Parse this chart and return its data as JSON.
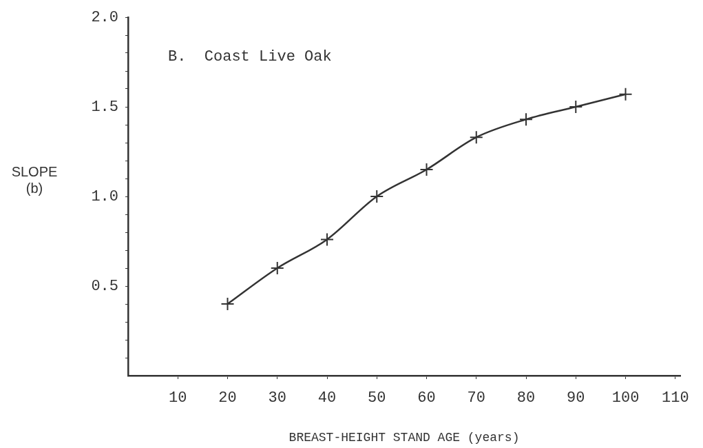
{
  "chart_data": {
    "type": "line",
    "annotations": [
      "B.  Coast Live Oak"
    ],
    "xlabel": "BREAST-HEIGHT STAND AGE (years)",
    "ylabel": "SLOPE (b)",
    "x": [
      20,
      30,
      40,
      50,
      60,
      70,
      80,
      90,
      100
    ],
    "series": [
      {
        "color": "#333333",
        "values": [
          0.4,
          0.6,
          0.76,
          1.0,
          1.15,
          1.33,
          1.43,
          1.5,
          1.57
        ]
      }
    ],
    "marker": "cross",
    "line_style": "solid",
    "grid": false,
    "legend": false,
    "xlim": [
      0,
      111
    ],
    "xticks": [
      10,
      20,
      30,
      40,
      50,
      60,
      70,
      80,
      90,
      100,
      110
    ],
    "ylim": [
      0,
      2
    ],
    "yticks": [
      {
        "value": 0.1,
        "label": null
      },
      {
        "value": 0.2,
        "label": null
      },
      {
        "value": 0.3,
        "label": null
      },
      {
        "value": 0.4,
        "label": null
      },
      {
        "value": 0.5,
        "label": "0.5"
      },
      {
        "value": 0.6,
        "label": null
      },
      {
        "value": 0.7,
        "label": null
      },
      {
        "value": 0.8,
        "label": null
      },
      {
        "value": 0.9,
        "label": null
      },
      {
        "value": 1.0,
        "label": "1.0"
      },
      {
        "value": 1.1,
        "label": null
      },
      {
        "value": 1.2,
        "label": null
      },
      {
        "value": 1.3,
        "label": null
      },
      {
        "value": 1.4,
        "label": null
      },
      {
        "value": 1.5,
        "label": "1.5"
      },
      {
        "value": 1.6,
        "label": null
      },
      {
        "value": 1.7,
        "label": null
      },
      {
        "value": 1.8,
        "label": null
      },
      {
        "value": 1.9,
        "label": null
      },
      {
        "value": 2.0,
        "label": "2.0"
      }
    ]
  }
}
